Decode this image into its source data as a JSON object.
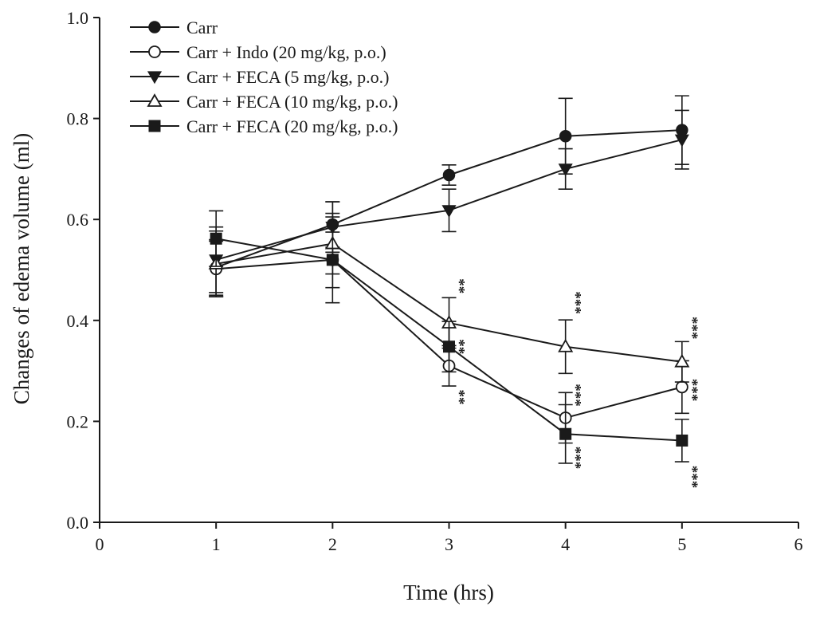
{
  "chart_data": {
    "type": "line",
    "xlabel": "Time (hrs)",
    "ylabel": "Changes of edema volume (ml)",
    "xlim": [
      0,
      6
    ],
    "ylim": [
      0,
      1.0
    ],
    "x_ticks": [
      0,
      1,
      2,
      3,
      4,
      5,
      6
    ],
    "y_ticks": [
      0.0,
      0.2,
      0.4,
      0.6,
      0.8,
      1.0
    ],
    "x_tick_labels": [
      "0",
      "1",
      "2",
      "3",
      "4",
      "5",
      "6"
    ],
    "y_tick_labels": [
      "0.0",
      "0.2",
      "0.4",
      "0.6",
      "0.8",
      "1.0"
    ],
    "legend_position": "top-left",
    "x": [
      1,
      2,
      3,
      4,
      5
    ],
    "series": [
      {
        "name": "Carr",
        "marker": "circle-filled",
        "values": [
          0.505,
          0.59,
          0.688,
          0.765,
          0.777
        ],
        "errors": [
          0.055,
          0.045,
          0.02,
          0.075,
          0.068
        ]
      },
      {
        "name": "Carr + Indo (20 mg/kg, p.o.)",
        "marker": "circle-open",
        "values": [
          0.502,
          0.52,
          0.31,
          0.207,
          0.268
        ],
        "errors": [
          0.055,
          0.085,
          0.04,
          0.05,
          0.052
        ]
      },
      {
        "name": "Carr + FECA (5 mg/kg, p.o.)",
        "marker": "triangle-down-filled",
        "values": [
          0.52,
          0.585,
          0.618,
          0.7,
          0.758
        ],
        "errors": [
          0.065,
          0.05,
          0.042,
          0.04,
          0.058
        ]
      },
      {
        "name": "Carr + FECA (10 mg/kg, p.o.)",
        "marker": "triangle-up-open",
        "values": [
          0.512,
          0.552,
          0.395,
          0.348,
          0.318
        ],
        "errors": [
          0.065,
          0.06,
          0.05,
          0.053,
          0.04
        ]
      },
      {
        "name": "Carr + FECA (20 mg/kg, p.o.)",
        "marker": "square-filled",
        "values": [
          0.562,
          0.52,
          0.348,
          0.175,
          0.162
        ],
        "errors": [
          0.055,
          0.055,
          0.05,
          0.058,
          0.042
        ]
      }
    ],
    "annotations": [
      {
        "x": 3,
        "y": 0.468,
        "text": "**"
      },
      {
        "x": 3,
        "y": 0.248,
        "text": "**"
      },
      {
        "x": 3,
        "y": 0.348,
        "text": "**"
      },
      {
        "x": 4,
        "y": 0.435,
        "text": "***"
      },
      {
        "x": 4,
        "y": 0.252,
        "text": "***"
      },
      {
        "x": 4,
        "y": 0.128,
        "text": "***"
      },
      {
        "x": 5,
        "y": 0.385,
        "text": "***"
      },
      {
        "x": 5,
        "y": 0.262,
        "text": "***"
      },
      {
        "x": 5,
        "y": 0.09,
        "text": "***"
      }
    ]
  }
}
